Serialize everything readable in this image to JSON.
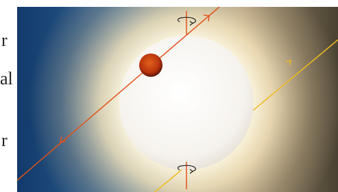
{
  "slide": {
    "text_fragments": [
      "r",
      "al",
      "r"
    ]
  }
}
